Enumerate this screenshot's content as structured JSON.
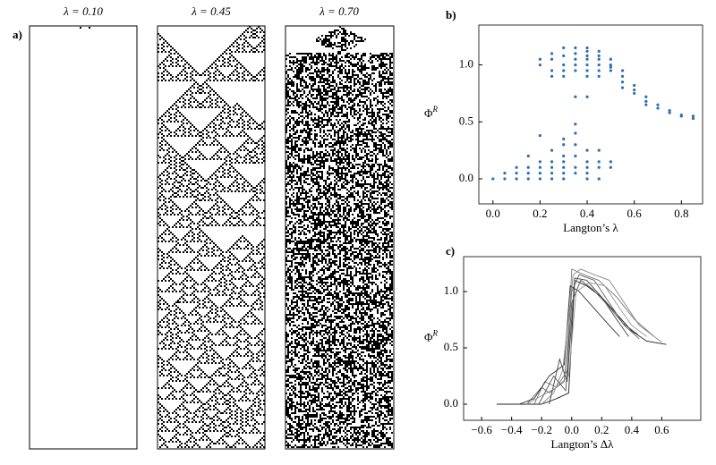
{
  "panel_labels": [
    "a)",
    "b)",
    "c)"
  ],
  "automata": [
    {
      "title": "λ = 0.10"
    },
    {
      "title": "λ = 0.45"
    },
    {
      "title": "λ = 0.70"
    }
  ],
  "chart_data": [
    {
      "type": "scatter",
      "x_label": "Langton’s λ",
      "y_label": "Φ",
      "y_label_sup": "R",
      "color": "#2e6fae",
      "x": [
        0.2,
        0.2,
        0.25,
        0.25,
        0.25,
        0.25,
        0.3,
        0.3,
        0.3,
        0.3,
        0.3,
        0.35,
        0.35,
        0.35,
        0.35,
        0.35,
        0.35,
        0.4,
        0.4,
        0.4,
        0.4,
        0.4,
        0.4,
        0.4,
        0.4,
        0.45,
        0.45,
        0.45,
        0.45,
        0.45,
        0.45,
        0.5,
        0.5,
        0.5,
        0.5,
        0.55,
        0.55,
        0.55,
        0.55,
        0.6,
        0.6,
        0.6,
        0.65,
        0.65,
        0.65,
        0.7,
        0.7,
        0.75,
        0.75,
        0.8,
        0.8,
        0.85,
        0.85,
        0.0,
        0.05,
        0.05,
        0.1,
        0.1,
        0.1,
        0.15,
        0.15,
        0.15,
        0.15,
        0.2,
        0.2,
        0.2,
        0.2,
        0.2,
        0.25,
        0.25,
        0.25,
        0.25,
        0.25,
        0.3,
        0.3,
        0.3,
        0.3,
        0.3,
        0.3,
        0.3,
        0.35,
        0.35,
        0.35,
        0.35,
        0.35,
        0.35,
        0.4,
        0.4,
        0.4,
        0.4,
        0.4,
        0.45,
        0.45,
        0.45,
        0.45,
        0.5,
        0.5
      ],
      "y": [
        1.05,
        1.0,
        1.1,
        1.05,
        0.95,
        0.9,
        1.15,
        1.08,
        1.0,
        0.95,
        0.9,
        1.15,
        1.1,
        1.05,
        1.0,
        0.95,
        0.72,
        1.15,
        1.12,
        1.08,
        1.05,
        1.0,
        0.95,
        0.9,
        0.72,
        1.12,
        1.08,
        1.05,
        1.0,
        0.95,
        0.9,
        1.05,
        1.0,
        0.98,
        0.95,
        0.95,
        0.9,
        0.85,
        0.8,
        0.82,
        0.78,
        0.75,
        0.72,
        0.68,
        0.65,
        0.65,
        0.62,
        0.6,
        0.58,
        0.56,
        0.55,
        0.55,
        0.53,
        0.0,
        0.05,
        0.0,
        0.1,
        0.05,
        0.0,
        0.2,
        0.1,
        0.05,
        0.0,
        0.38,
        0.15,
        0.1,
        0.05,
        0.0,
        0.25,
        0.15,
        0.1,
        0.05,
        0.0,
        0.35,
        0.3,
        0.2,
        0.15,
        0.1,
        0.05,
        0.0,
        0.48,
        0.4,
        0.3,
        0.2,
        0.1,
        0.05,
        0.25,
        0.15,
        0.1,
        0.05,
        0.0,
        0.25,
        0.15,
        0.1,
        0.0,
        0.15,
        0.1
      ],
      "xlim": [
        -0.06,
        0.89
      ],
      "ylim": [
        -0.22,
        1.35
      ],
      "xticks": [
        {
          "value": 0,
          "label": "0.0"
        },
        0.2,
        0.4,
        0.6,
        0.8
      ],
      "yticks": [
        {
          "value": 0,
          "label": "0.0"
        },
        0.5,
        {
          "value": 1,
          "label": "1.0"
        }
      ]
    },
    {
      "type": "line",
      "x_label": "Langton’s Δλ",
      "y_label": "Φ",
      "y_label_sup": "R",
      "series": [
        {
          "color": "#222222",
          "x": [
            -0.5,
            -0.2,
            -0.1,
            -0.02,
            0.02,
            0.1,
            0.2,
            0.3,
            0.4,
            0.5,
            0.63
          ],
          "values": [
            0,
            0,
            0.05,
            0.1,
            1.1,
            1.05,
            0.95,
            0.8,
            0.65,
            0.56,
            0.53
          ]
        },
        {
          "color": "#666666",
          "x": [
            -0.3,
            -0.2,
            -0.15,
            -0.05,
            0,
            0.05,
            0.15,
            0.25,
            0.35,
            0.45
          ],
          "values": [
            0,
            0.15,
            0.1,
            0.2,
            1.0,
            1.15,
            1.1,
            0.9,
            0.7,
            0.58
          ]
        },
        {
          "color": "#777777",
          "x": [
            -0.25,
            -0.18,
            -0.1,
            -0.03,
            0.0,
            0.08,
            0.18,
            0.3,
            0.42,
            0.55
          ],
          "values": [
            0,
            0.2,
            0.15,
            0.3,
            1.2,
            1.15,
            1.1,
            0.95,
            0.75,
            0.6
          ]
        },
        {
          "color": "#333333",
          "x": [
            -0.35,
            -0.25,
            -0.15,
            -0.05,
            -0.01,
            0.05,
            0.15,
            0.25,
            0.32
          ],
          "values": [
            0,
            0.05,
            0.25,
            0.35,
            1.05,
            1.0,
            0.85,
            0.7,
            0.6
          ]
        },
        {
          "color": "#888888",
          "x": [
            -0.2,
            -0.12,
            -0.06,
            0.01,
            0.06,
            0.15,
            0.25,
            0.35,
            0.45,
            0.6
          ],
          "values": [
            0,
            0.1,
            0.3,
            1.15,
            1.2,
            1.15,
            1.1,
            0.9,
            0.7,
            0.55
          ]
        },
        {
          "color": "#444444",
          "x": [
            -0.15,
            -0.08,
            -0.03,
            0.02,
            0.1,
            0.2,
            0.3,
            0.38
          ],
          "values": [
            0,
            0.4,
            0.2,
            1.12,
            1.1,
            0.95,
            0.75,
            0.6
          ]
        },
        {
          "color": "#999999",
          "x": [
            -0.3,
            -0.1,
            -0.02,
            0.03,
            0.12,
            0.22,
            0.32,
            0.4,
            0.5
          ],
          "values": [
            0,
            0.15,
            0.25,
            1.0,
            1.08,
            1.05,
            0.85,
            0.7,
            0.6
          ]
        },
        {
          "color": "#555555",
          "x": [
            -0.22,
            -0.12,
            -0.04,
            0.0,
            0.06,
            0.14,
            0.24,
            0.34,
            0.44
          ],
          "values": [
            0,
            0.25,
            0.12,
            0.9,
            1.1,
            1.02,
            0.88,
            0.72,
            0.62
          ]
        }
      ],
      "xlim": [
        -0.72,
        0.86
      ],
      "ylim": [
        -0.143,
        1.31
      ],
      "xticks": [
        {
          "value": -0.6,
          "label": "−0.6"
        },
        {
          "value": -0.4,
          "label": "−0.4"
        },
        {
          "value": -0.2,
          "label": "−0.2"
        },
        {
          "value": 0,
          "label": "0.0"
        },
        0.2,
        0.4,
        0.6
      ],
      "yticks": [
        {
          "value": 0,
          "label": "0.0"
        },
        0.5,
        {
          "value": 1,
          "label": "1.0"
        }
      ]
    }
  ]
}
